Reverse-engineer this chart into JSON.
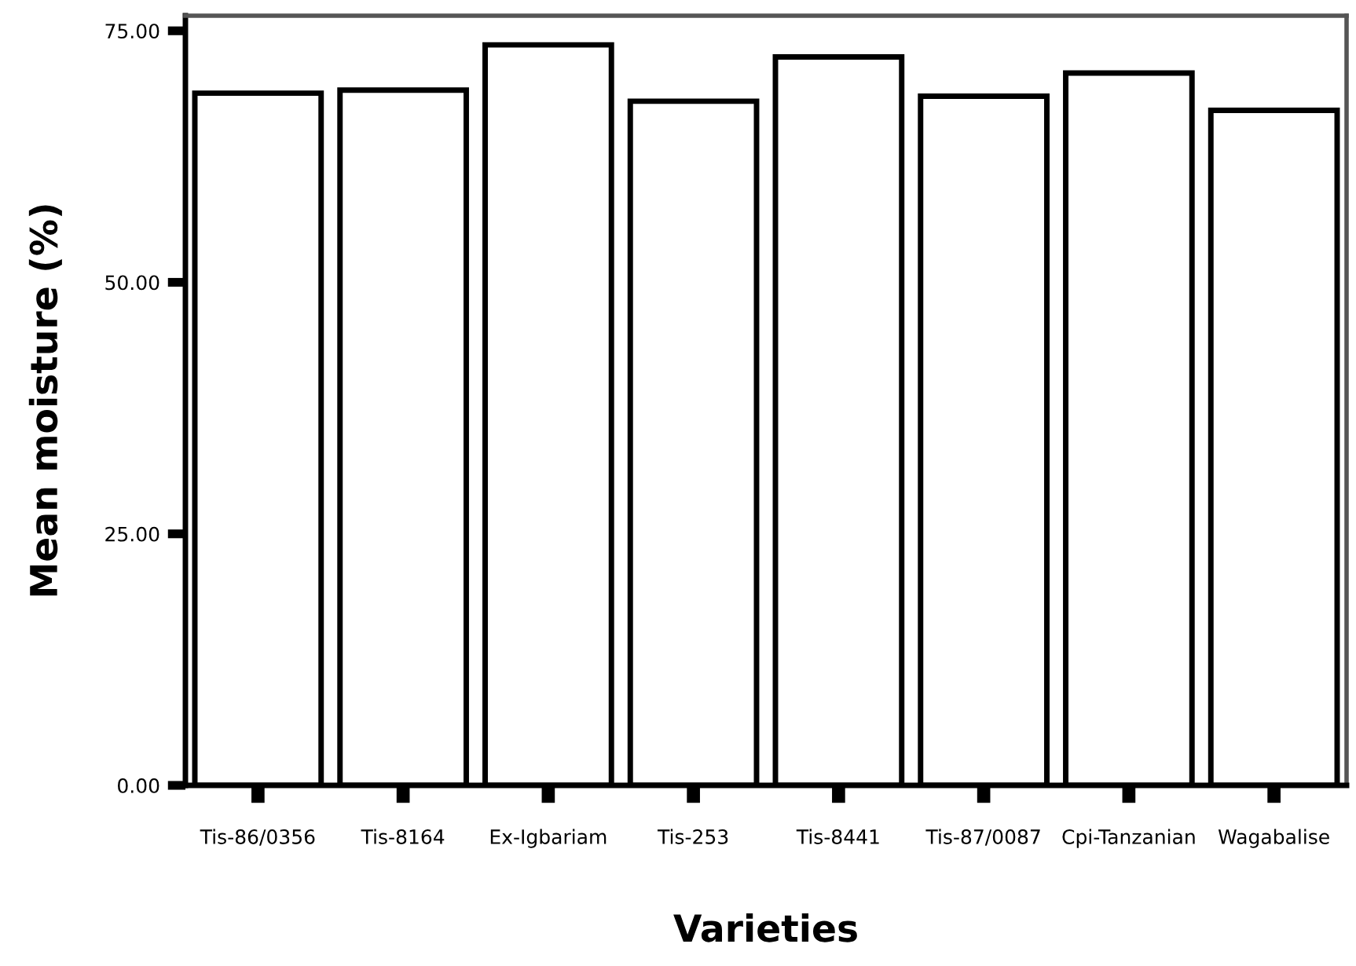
{
  "chart_data": {
    "type": "bar",
    "xlabel": "Varieties",
    "ylabel": "Mean moisture (%)",
    "categories": [
      "Tis-86/0356",
      "Tis-8164",
      "Ex-Igbariam",
      "Tis-253",
      "Tis-8441",
      "Tis-87/0087",
      "Cpi-Tanzanian",
      "Wagabalise"
    ],
    "values": [
      68.8,
      69.1,
      73.6,
      68.0,
      72.4,
      68.5,
      70.8,
      67.1
    ],
    "color": "#ffffff",
    "ylim": [
      0,
      76.5
    ],
    "yticks": [
      {
        "value": 0,
        "label": "0.00"
      },
      {
        "value": 25,
        "label": "25.00"
      },
      {
        "value": 50,
        "label": "50.00"
      },
      {
        "value": 75,
        "label": "75.00"
      }
    ],
    "grid": false,
    "legend": false
  }
}
